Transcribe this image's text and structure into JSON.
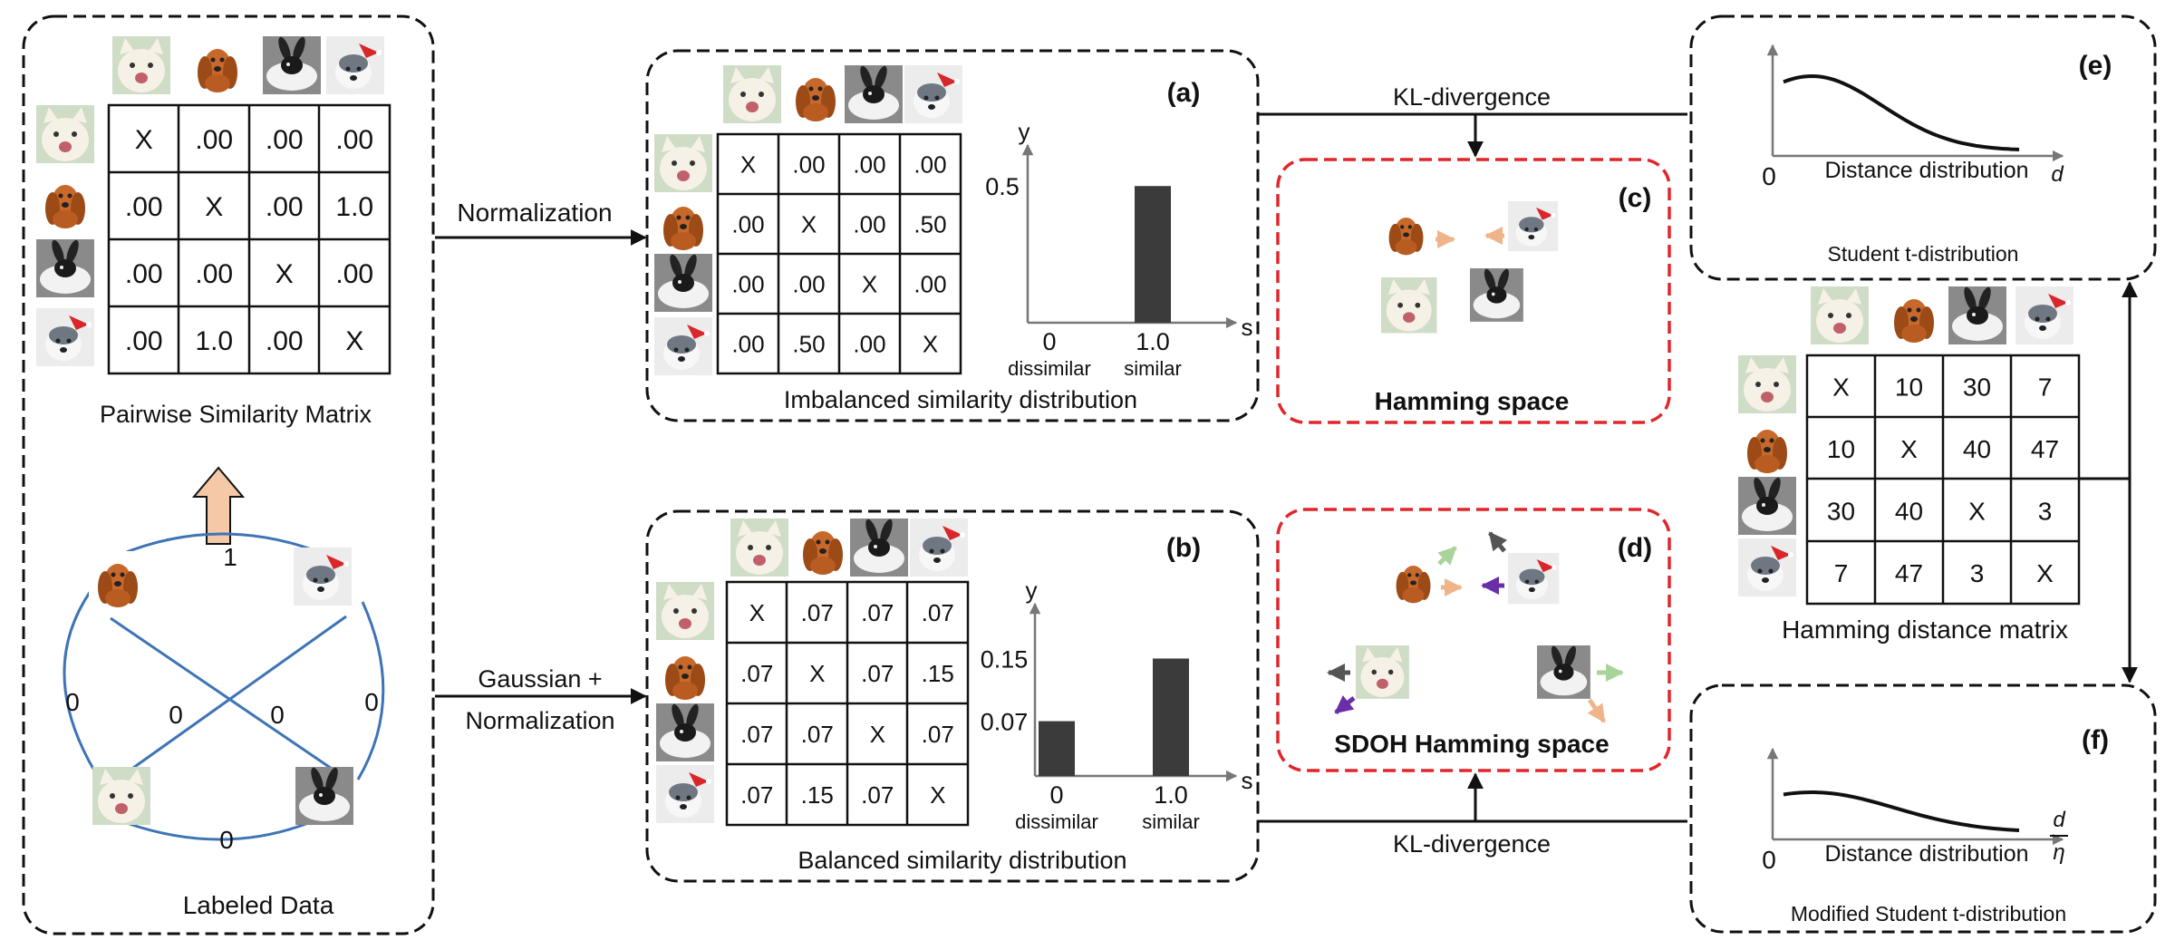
{
  "panels": {
    "a": "(a)",
    "b": "(b)",
    "c": "(c)",
    "d": "(d)",
    "e": "(e)",
    "f": "(f)"
  },
  "labeled_data": {
    "caption": "Labeled Data",
    "edge_labels": {
      "top": "1",
      "left": "0",
      "right": "0",
      "bottom": "0",
      "cross_left": "0",
      "cross_right": "0"
    }
  },
  "pairwise_matrix": {
    "caption": "Pairwise Similarity Matrix",
    "cells": [
      [
        "X",
        ".00",
        ".00",
        ".00"
      ],
      [
        ".00",
        "X",
        ".00",
        "1.0"
      ],
      [
        ".00",
        ".00",
        "X",
        ".00"
      ],
      [
        ".00",
        "1.0",
        ".00",
        "X"
      ]
    ]
  },
  "edges": {
    "normalization": "Normalization",
    "gaussian_line1": "Gaussian +",
    "gaussian_line2": "Normalization",
    "kl_top": "KL-divergence",
    "kl_bottom": "KL-divergence"
  },
  "imbalanced": {
    "caption": "Imbalanced similarity distribution",
    "cells": [
      [
        "X",
        ".00",
        ".00",
        ".00"
      ],
      [
        ".00",
        "X",
        ".00",
        ".50"
      ],
      [
        ".00",
        ".00",
        "X",
        ".00"
      ],
      [
        ".00",
        ".50",
        ".00",
        "X"
      ]
    ]
  },
  "balanced": {
    "caption": "Balanced similarity distribution",
    "cells": [
      [
        "X",
        ".07",
        ".07",
        ".07"
      ],
      [
        ".07",
        "X",
        ".07",
        ".15"
      ],
      [
        ".07",
        ".07",
        "X",
        ".07"
      ],
      [
        ".07",
        ".15",
        ".07",
        "X"
      ]
    ]
  },
  "chart_data": [
    {
      "type": "bar",
      "categories": [
        "0",
        "1.0"
      ],
      "category_sublabels": [
        "dissimilar",
        "similar"
      ],
      "values": [
        0,
        0.5
      ],
      "ytick_labels": [
        "0.5"
      ],
      "xlabel": "s",
      "ylabel": "y",
      "color": "#3b3b3b"
    },
    {
      "type": "bar",
      "categories": [
        "0",
        "1.0"
      ],
      "category_sublabels": [
        "dissimilar",
        "similar"
      ],
      "values": [
        0.07,
        0.15
      ],
      "ytick_labels": [
        "0.15",
        "0.07"
      ],
      "xlabel": "s",
      "ylabel": "y",
      "color": "#3b3b3b"
    },
    {
      "type": "line",
      "title": "Student t-distribution",
      "xlabel": "Distance distribution",
      "x_axis_symbol": "d",
      "origin_label": "0"
    },
    {
      "type": "line",
      "title": "Modified Student t-distribution",
      "xlabel": "Distance distribution",
      "x_axis_symbol_num": "d",
      "x_axis_symbol_den": "η",
      "origin_label": "0"
    }
  ],
  "hamming": {
    "title": "Hamming space"
  },
  "sdoh": {
    "title": "SDOH Hamming space"
  },
  "hamming_matrix": {
    "caption": "Hamming distance matrix",
    "cells": [
      [
        "X",
        "10",
        "30",
        "7"
      ],
      [
        "10",
        "X",
        "40",
        "47"
      ],
      [
        "30",
        "40",
        "X",
        "3"
      ],
      [
        "7",
        "47",
        "3",
        "X"
      ]
    ]
  },
  "colors": {
    "edge_blue": "#3e74b5",
    "red_box": "#e0262b",
    "orange_arrow": "#f0b48a",
    "green_arrow": "#a8d49a",
    "purple_arrow": "#6a2fa8",
    "gray_arrow": "#555555",
    "bar": "#3b3b3b"
  }
}
